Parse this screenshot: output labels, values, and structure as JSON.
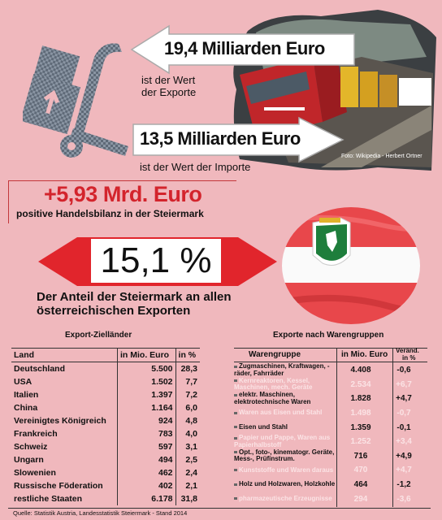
{
  "exports": {
    "value": "19,4 Milliarden Euro",
    "caption_line1": "ist der Wert",
    "caption_line2": "der Exporte"
  },
  "imports": {
    "value": "13,5 Milliarden Euro",
    "caption": "ist der Wert der Importe"
  },
  "photo_credit": "Foto: Wikipedia - Herbert Ortner",
  "balance": {
    "value": "+5,93 Mrd. Euro",
    "caption": "positive Handelsbilanz in der Steiermark"
  },
  "share": {
    "value": "15,1 %",
    "caption_line1": "Der Anteil der Steiermark an allen",
    "caption_line2": "österreichischen Exporten"
  },
  "countries": {
    "title": "Export-Zielländer",
    "col_land": "Land",
    "col_value": "in Mio. Euro",
    "col_pct": "in %",
    "rows": [
      {
        "land": "Deutschland",
        "value": "5.500",
        "pct": "28,3"
      },
      {
        "land": "USA",
        "value": "1.502",
        "pct": "7,7"
      },
      {
        "land": "Italien",
        "value": "1.397",
        "pct": "7,2"
      },
      {
        "land": "China",
        "value": "1.164",
        "pct": "6,0"
      },
      {
        "land": "Vereinigtes Königreich",
        "value": "924",
        "pct": "4,8"
      },
      {
        "land": "Frankreich",
        "value": "783",
        "pct": "4,0"
      },
      {
        "land": "Schweiz",
        "value": "597",
        "pct": "3,1"
      },
      {
        "land": "Ungarn",
        "value": "494",
        "pct": "2,5"
      },
      {
        "land": "Slowenien",
        "value": "462",
        "pct": "2,4"
      },
      {
        "land": "Russische Föderation",
        "value": "402",
        "pct": "2,1"
      },
      {
        "land": "restliche Staaten",
        "value": "6.178",
        "pct": "31,8"
      }
    ]
  },
  "goods": {
    "title": "Exporte nach Warengruppen",
    "col_group": "Warengruppe",
    "col_value": "in Mio. Euro",
    "col_change_1": "Veränd.",
    "col_change_2": "in %",
    "rows": [
      {
        "group": "Zugmaschinen, Kraftwagen, -räder, Fahrräder",
        "value": "4.408",
        "change": "-0,6",
        "light": false
      },
      {
        "group": "Kernreaktoren, Kessel, Maschinen, mech. Geräte",
        "value": "2.534",
        "change": "+6,7",
        "light": true
      },
      {
        "group": "elektr. Maschinen, elektrotechnische Waren",
        "value": "1.828",
        "change": "+4,7",
        "light": false
      },
      {
        "group": "Waren aus Eisen und Stahl",
        "value": "1.498",
        "change": "-0,7",
        "light": true
      },
      {
        "group": "Eisen und Stahl",
        "value": "1.359",
        "change": "-0,1",
        "light": false
      },
      {
        "group": "Papier und Pappe, Waren aus Papierhalbstoff",
        "value": "1.252",
        "change": "+3,4",
        "light": true
      },
      {
        "group": "Opt., foto-, kinematogr. Geräte, Mess-, Prüfinstrum.",
        "value": "716",
        "change": "+4,9",
        "light": false
      },
      {
        "group": "Kunststoffe und Waren daraus",
        "value": "470",
        "change": "+4,7",
        "light": true
      },
      {
        "group": "Holz und Holzwaren, Holzkohle",
        "value": "464",
        "change": "-1,2",
        "light": false
      },
      {
        "group": "pharmazeutische Erzeugnisse",
        "value": "294",
        "change": "-3,6",
        "light": true
      }
    ]
  },
  "source": "Quelle: Statistik Austria, Landesstatistik Steiermark - Stand 2014"
}
